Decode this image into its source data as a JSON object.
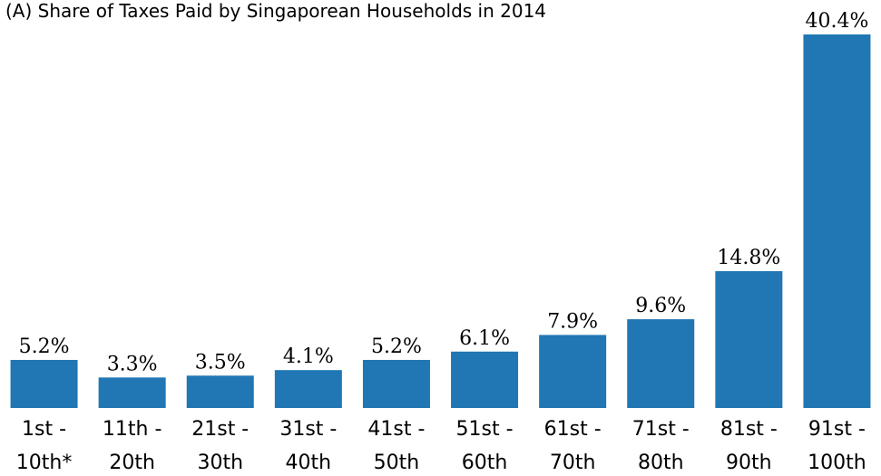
{
  "chart_data": {
    "type": "bar",
    "title": "(A) Share of Taxes Paid by Singaporean Households in 2014",
    "categories": [
      "1st - 10th*",
      "11th - 20th",
      "21st - 30th",
      "31st - 40th",
      "41st - 50th",
      "51st - 60th",
      "61st - 70th",
      "71st - 80th",
      "81st - 90th",
      "91st - 100th"
    ],
    "values": [
      5.2,
      3.3,
      3.5,
      4.1,
      5.2,
      6.1,
      7.9,
      9.6,
      14.8,
      40.4
    ],
    "value_labels": [
      "5.2%",
      "3.3%",
      "3.5%",
      "4.1%",
      "5.2%",
      "6.1%",
      "7.9%",
      "9.6%",
      "14.8%",
      "40.4%"
    ],
    "color": "#2077b4"
  }
}
